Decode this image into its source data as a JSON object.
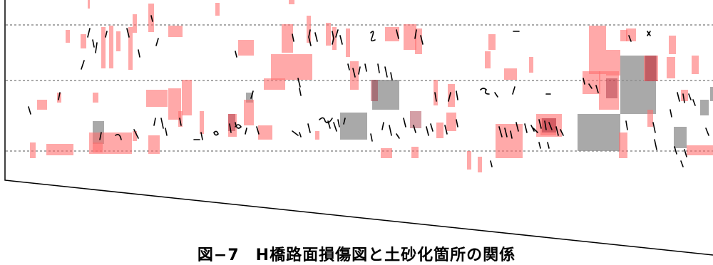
{
  "figure": {
    "caption": "図−7　H橋路面損傷図と土砂化箇所の関係",
    "colors": {
      "damage_area": "#ff6f6f",
      "sediment_area": "#8c8c8c",
      "crack": "#000000",
      "guide_line": "#777777",
      "outline": "#000000"
    }
  }
}
